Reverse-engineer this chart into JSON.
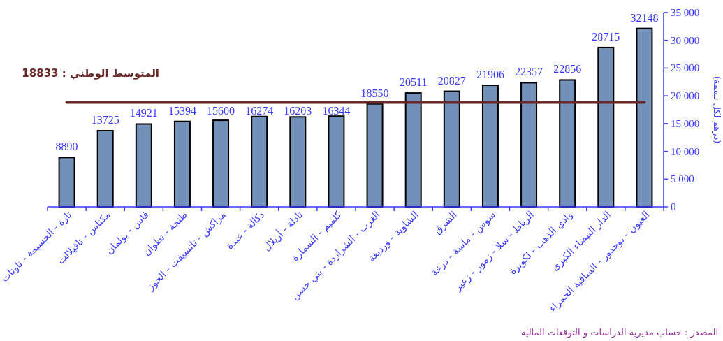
{
  "chart_data": {
    "type": "bar",
    "categories": [
      "تازة - الحسيمة - تاونات",
      "مكناس - تافيلالت",
      "فاس - بولمان",
      "طنجة - تطوان",
      "مراكش - تانسيفت - الحوز",
      "دكالة - عبدة",
      "تادلة - أزيلال",
      "كلميم - السمارة",
      "الغرب - الشراردة - بني حسن",
      "الشاوية - ورديغة",
      "الشرق",
      "سوس - ماسة - درعة",
      "الرباط - سلا - زمور - زعير",
      "وادي الذهب - لكويرة",
      "الدار البيضاء الكبرى",
      "العيون - بوجدور - الساقية الحمراء"
    ],
    "values": [
      8890,
      13725,
      14921,
      15394,
      15600,
      16274,
      16203,
      16344,
      18550,
      20511,
      20827,
      21906,
      22357,
      22856,
      28715,
      32148
    ],
    "color": "#7391b8",
    "data_labels": true,
    "ylabel": "(درهم لكل نسمة)",
    "ylim": [
      0,
      35000
    ],
    "yticks": [
      0,
      {
        "value": 5000,
        "label": "5 000"
      },
      {
        "value": 10000,
        "label": "10 000"
      },
      {
        "value": 15000,
        "label": "15 000"
      },
      {
        "value": 20000,
        "label": "20 000"
      },
      {
        "value": 25000,
        "label": "25 000"
      },
      {
        "value": 30000,
        "label": "30 000"
      },
      {
        "value": 35000,
        "label": "35 000"
      }
    ],
    "ref_lines": [
      {
        "axis": "y",
        "value": 18833,
        "label": "المتوسط الوطني : 18833",
        "color": "#6b2a2a"
      }
    ],
    "annotations": [
      "المصدر : حساب مديرية الدراسات و التوقعات المالية"
    ],
    "grid": false
  }
}
